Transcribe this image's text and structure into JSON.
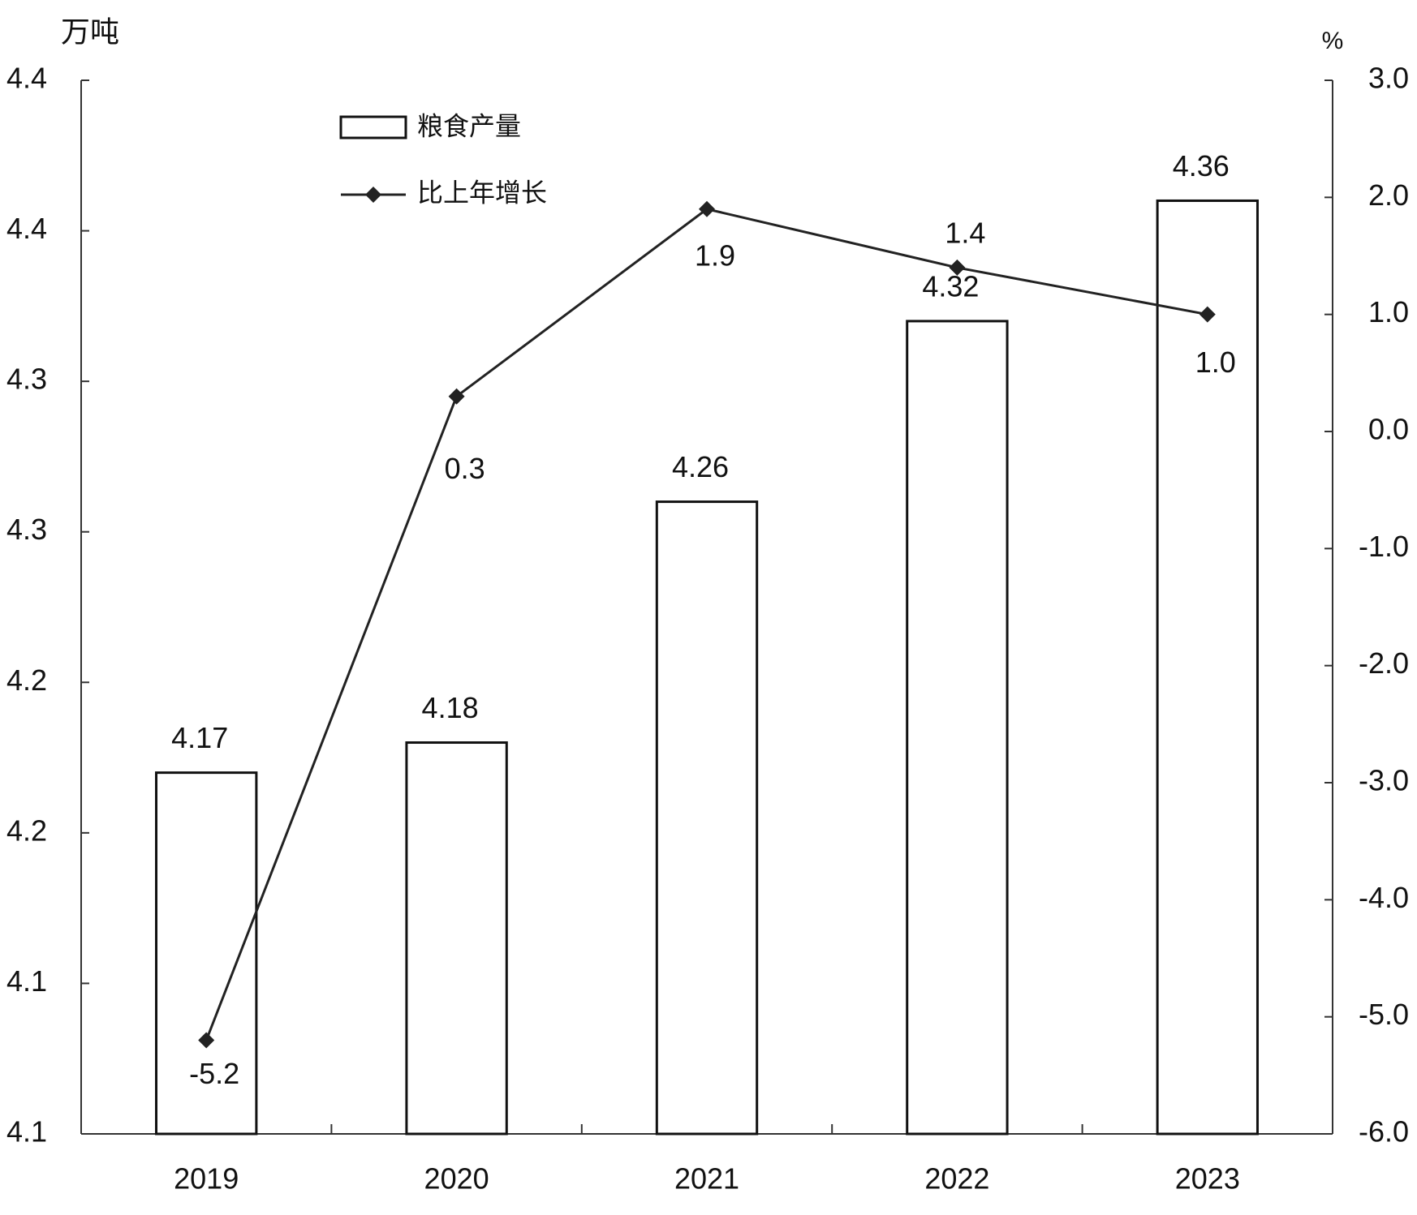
{
  "chart_data": {
    "type": "bar_line",
    "y_label": "万吨",
    "y2_label": "%",
    "categories": [
      "2019",
      "2020",
      "2021",
      "2022",
      "2023"
    ],
    "series": [
      {
        "name": "粮食产量",
        "type": "bar",
        "color": "#ffffff",
        "stroke": "#111111",
        "values": [
          4.17,
          4.18,
          4.26,
          4.32,
          4.36
        ]
      },
      {
        "name": "比上年增长",
        "type": "line",
        "axis": "y2",
        "color": "#222222",
        "values": [
          -5.2,
          0.3,
          1.9,
          1.4,
          1.0
        ],
        "value_labels": [
          "-5.2",
          "0.3",
          "1.9",
          "1.4",
          "1.0"
        ]
      }
    ],
    "ylim": [
      4.05,
      4.4
    ],
    "yticks": [
      {
        "value": 4.05,
        "label": "4.1"
      },
      {
        "value": 4.1,
        "label": "4.1"
      },
      {
        "value": 4.15,
        "label": "4.2"
      },
      {
        "value": 4.2,
        "label": "4.2"
      },
      {
        "value": 4.25,
        "label": "4.3"
      },
      {
        "value": 4.3,
        "label": "4.3"
      },
      {
        "value": 4.35,
        "label": "4.4"
      },
      {
        "value": 4.4,
        "label": "4.4"
      }
    ],
    "y2lim": [
      -6,
      3
    ],
    "y2ticks": [
      {
        "value": -6,
        "label": "-6.0"
      },
      {
        "value": -5,
        "label": "-5.0"
      },
      {
        "value": -4,
        "label": "-4.0"
      },
      {
        "value": -3,
        "label": "-3.0"
      },
      {
        "value": -2,
        "label": "-2.0"
      },
      {
        "value": -1,
        "label": "-1.0"
      },
      {
        "value": 0,
        "label": "0.0"
      },
      {
        "value": 1,
        "label": "1.0"
      },
      {
        "value": 2,
        "label": "2.0"
      },
      {
        "value": 3,
        "label": "3.0"
      }
    ],
    "legend": "upper left"
  }
}
